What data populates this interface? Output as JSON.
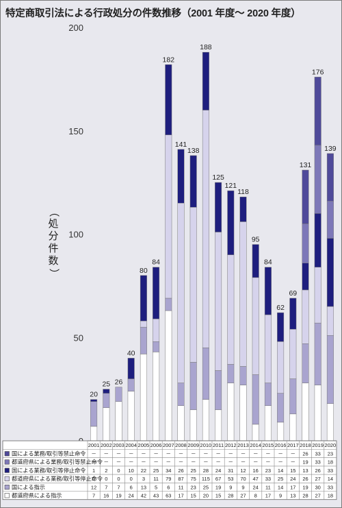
{
  "title": "特定商取引法による行政処分の件数推移（2001 年度～ 2020 年度）",
  "chart_data": {
    "type": "bar",
    "stacked": true,
    "ylabel": "（処分件数）",
    "ylim": [
      0,
      200
    ],
    "yticks": [
      0,
      50,
      100,
      150,
      200
    ],
    "categories": [
      "2001",
      "2002",
      "2003",
      "2004",
      "2005",
      "2006",
      "2007",
      "2008",
      "2009",
      "2010",
      "2011",
      "2012",
      "2013",
      "2014",
      "2015",
      "2016",
      "2017",
      "2018",
      "2019",
      "2020"
    ],
    "totals": [
      20,
      25,
      26,
      40,
      80,
      84,
      182,
      141,
      138,
      188,
      125,
      121,
      118,
      95,
      84,
      62,
      69,
      131,
      176,
      139
    ],
    "series": [
      {
        "name": "都道府県による指示",
        "color": "#ffffff",
        "values": [
          7,
          16,
          19,
          24,
          42,
          43,
          63,
          17,
          15,
          20,
          15,
          28,
          27,
          8,
          17,
          9,
          13,
          28,
          27,
          18
        ],
        "labels": [
          "7",
          "16",
          "19",
          "24",
          "42",
          "43",
          "63",
          "17",
          "15",
          "20",
          "15",
          "28",
          "27",
          "8",
          "17",
          "9",
          "13",
          "28",
          "27",
          "18"
        ]
      },
      {
        "name": "国による指示",
        "color": "#a9a4cf",
        "values": [
          12,
          7,
          7,
          6,
          13,
          5,
          6,
          11,
          23,
          25,
          19,
          9,
          9,
          24,
          11,
          14,
          17,
          19,
          30,
          33
        ],
        "labels": [
          "12",
          "7",
          "7",
          "6",
          "13",
          "5",
          "6",
          "11",
          "23",
          "25",
          "19",
          "9",
          "9",
          "24",
          "11",
          "14",
          "17",
          "19",
          "30",
          "33"
        ]
      },
      {
        "name": "都道府県による業務/取引等停止命令",
        "color": "#d6d3ec",
        "values": [
          0,
          0,
          0,
          0,
          3,
          11,
          79,
          87,
          75,
          115,
          67,
          53,
          70,
          47,
          33,
          25,
          24,
          26,
          27,
          14
        ],
        "labels": [
          "0",
          "0",
          "0",
          "0",
          "3",
          "11",
          "79",
          "87",
          "75",
          "115",
          "67",
          "53",
          "70",
          "47",
          "33",
          "25",
          "24",
          "26",
          "27",
          "14"
        ]
      },
      {
        "name": "国による業務/取引等停止命令",
        "color": "#1e1e7e",
        "values": [
          1,
          2,
          0,
          10,
          22,
          25,
          34,
          26,
          25,
          28,
          24,
          31,
          12,
          16,
          23,
          14,
          15,
          13,
          26,
          33
        ],
        "labels": [
          "1",
          "2",
          "0",
          "10",
          "22",
          "25",
          "34",
          "26",
          "25",
          "28",
          "24",
          "31",
          "12",
          "16",
          "23",
          "14",
          "15",
          "13",
          "26",
          "33"
        ]
      },
      {
        "name": "都道府県による業務/取引等禁止命令",
        "color": "#7d78b8",
        "values": [
          0,
          0,
          0,
          0,
          0,
          0,
          0,
          0,
          0,
          0,
          0,
          0,
          0,
          0,
          0,
          0,
          0,
          19,
          33,
          18
        ],
        "labels": [
          "－",
          "－",
          "－",
          "－",
          "－",
          "－",
          "－",
          "－",
          "－",
          "－",
          "－",
          "－",
          "－",
          "－",
          "－",
          "－",
          "－",
          "19",
          "33",
          "18"
        ]
      },
      {
        "name": "国による業務/取引等禁止命令",
        "color": "#4f4a9a",
        "values": [
          0,
          0,
          0,
          0,
          0,
          0,
          0,
          0,
          0,
          0,
          0,
          0,
          0,
          0,
          0,
          0,
          0,
          26,
          33,
          23
        ],
        "labels": [
          "－",
          "－",
          "－",
          "－",
          "－",
          "－",
          "－",
          "－",
          "－",
          "－",
          "－",
          "－",
          "－",
          "－",
          "－",
          "－",
          "－",
          "26",
          "33",
          "23"
        ]
      }
    ]
  }
}
